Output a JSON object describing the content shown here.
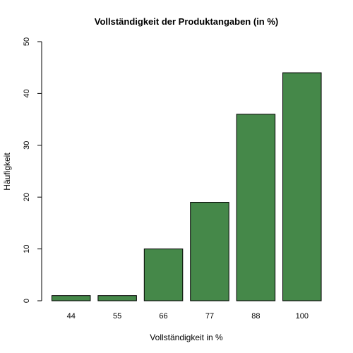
{
  "chart_data": {
    "type": "bar",
    "title": "Vollständigkeit der Produktangaben (in %)",
    "xlabel": "Vollständigkeit in %",
    "ylabel": "Häufigkeit",
    "categories": [
      "44",
      "55",
      "66",
      "77",
      "88",
      "100"
    ],
    "values": [
      1,
      1,
      10,
      19,
      36,
      44
    ],
    "ylim": [
      0,
      50
    ],
    "yticks": [
      0,
      10,
      20,
      30,
      40,
      50
    ],
    "bar_color": "#458849",
    "grid": false,
    "legend": "none"
  }
}
